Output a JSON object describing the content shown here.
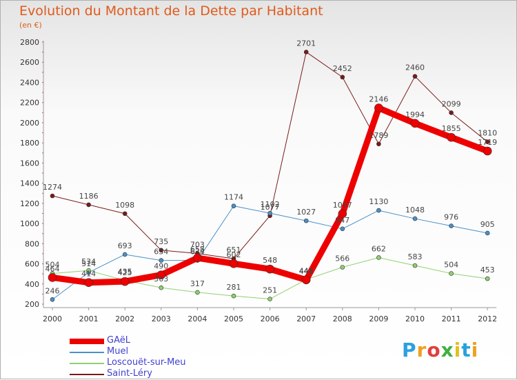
{
  "title": "Evolution du Montant de la Dette par Habitant",
  "subtitle": "(en €)",
  "logo": {
    "text": "Proxiti",
    "colors": [
      "#2aa0e0",
      "#f0a020",
      "#e04040",
      "#40b040",
      "#e0c020",
      "#2aa0e0",
      "#f0a020"
    ]
  },
  "chart_data": {
    "type": "line",
    "x": [
      "2000",
      "2001",
      "2002",
      "2003",
      "2004",
      "2005",
      "2006",
      "2007",
      "2008",
      "2009",
      "2010",
      "2011",
      "2012"
    ],
    "ylim": [
      200,
      2800
    ],
    "yticks": [
      200,
      400,
      600,
      800,
      1000,
      1200,
      1400,
      1600,
      1800,
      2000,
      2200,
      2400,
      2600,
      2800
    ],
    "grid": false,
    "legend_position": "bottom-left",
    "series": [
      {
        "name": "Saint-Léry",
        "color": "#7a1a1a",
        "width": 1,
        "values": [
          1274,
          1186,
          1098,
          735,
          703,
          651,
          1077,
          2701,
          2452,
          1789,
          2460,
          2099,
          1810
        ]
      },
      {
        "name": "Muel",
        "color": "#4a90c8",
        "width": 1,
        "values": [
          246,
          514,
          693,
          634,
          634,
          1174,
          1102,
          1027,
          947,
          1130,
          1048,
          976,
          905
        ]
      },
      {
        "name": "Loscouët-sur-Meu",
        "color": "#90d070",
        "width": 1,
        "values": [
          504,
          534,
          435,
          363,
          317,
          281,
          251,
          444,
          566,
          662,
          583,
          504,
          453
        ]
      },
      {
        "name": "GAëL",
        "color": "#ee0000",
        "width": 9,
        "values": [
          464,
          414,
          425,
          490,
          658,
          602,
          548,
          441,
          1097,
          2146,
          1994,
          1855,
          1719
        ]
      }
    ]
  }
}
